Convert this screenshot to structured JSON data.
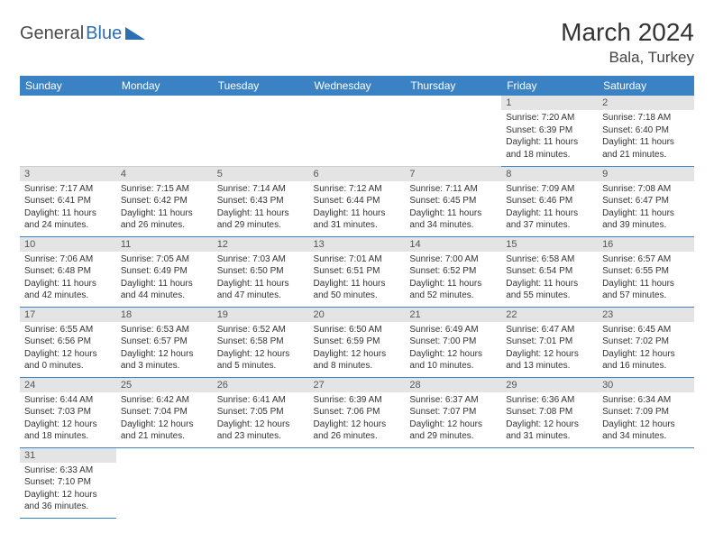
{
  "logo": {
    "text1": "General",
    "text2": "Blue"
  },
  "title": "March 2024",
  "location": "Bala, Turkey",
  "colors": {
    "header_bg": "#3b82c4",
    "header_text": "#ffffff",
    "daynum_bg": "#e4e4e4",
    "row_border": "#3b82c4",
    "body_text": "#333333"
  },
  "weekdays": [
    "Sunday",
    "Monday",
    "Tuesday",
    "Wednesday",
    "Thursday",
    "Friday",
    "Saturday"
  ],
  "weeks": [
    [
      null,
      null,
      null,
      null,
      null,
      {
        "n": "1",
        "sunrise": "Sunrise: 7:20 AM",
        "sunset": "Sunset: 6:39 PM",
        "daylight": "Daylight: 11 hours and 18 minutes."
      },
      {
        "n": "2",
        "sunrise": "Sunrise: 7:18 AM",
        "sunset": "Sunset: 6:40 PM",
        "daylight": "Daylight: 11 hours and 21 minutes."
      }
    ],
    [
      {
        "n": "3",
        "sunrise": "Sunrise: 7:17 AM",
        "sunset": "Sunset: 6:41 PM",
        "daylight": "Daylight: 11 hours and 24 minutes."
      },
      {
        "n": "4",
        "sunrise": "Sunrise: 7:15 AM",
        "sunset": "Sunset: 6:42 PM",
        "daylight": "Daylight: 11 hours and 26 minutes."
      },
      {
        "n": "5",
        "sunrise": "Sunrise: 7:14 AM",
        "sunset": "Sunset: 6:43 PM",
        "daylight": "Daylight: 11 hours and 29 minutes."
      },
      {
        "n": "6",
        "sunrise": "Sunrise: 7:12 AM",
        "sunset": "Sunset: 6:44 PM",
        "daylight": "Daylight: 11 hours and 31 minutes."
      },
      {
        "n": "7",
        "sunrise": "Sunrise: 7:11 AM",
        "sunset": "Sunset: 6:45 PM",
        "daylight": "Daylight: 11 hours and 34 minutes."
      },
      {
        "n": "8",
        "sunrise": "Sunrise: 7:09 AM",
        "sunset": "Sunset: 6:46 PM",
        "daylight": "Daylight: 11 hours and 37 minutes."
      },
      {
        "n": "9",
        "sunrise": "Sunrise: 7:08 AM",
        "sunset": "Sunset: 6:47 PM",
        "daylight": "Daylight: 11 hours and 39 minutes."
      }
    ],
    [
      {
        "n": "10",
        "sunrise": "Sunrise: 7:06 AM",
        "sunset": "Sunset: 6:48 PM",
        "daylight": "Daylight: 11 hours and 42 minutes."
      },
      {
        "n": "11",
        "sunrise": "Sunrise: 7:05 AM",
        "sunset": "Sunset: 6:49 PM",
        "daylight": "Daylight: 11 hours and 44 minutes."
      },
      {
        "n": "12",
        "sunrise": "Sunrise: 7:03 AM",
        "sunset": "Sunset: 6:50 PM",
        "daylight": "Daylight: 11 hours and 47 minutes."
      },
      {
        "n": "13",
        "sunrise": "Sunrise: 7:01 AM",
        "sunset": "Sunset: 6:51 PM",
        "daylight": "Daylight: 11 hours and 50 minutes."
      },
      {
        "n": "14",
        "sunrise": "Sunrise: 7:00 AM",
        "sunset": "Sunset: 6:52 PM",
        "daylight": "Daylight: 11 hours and 52 minutes."
      },
      {
        "n": "15",
        "sunrise": "Sunrise: 6:58 AM",
        "sunset": "Sunset: 6:54 PM",
        "daylight": "Daylight: 11 hours and 55 minutes."
      },
      {
        "n": "16",
        "sunrise": "Sunrise: 6:57 AM",
        "sunset": "Sunset: 6:55 PM",
        "daylight": "Daylight: 11 hours and 57 minutes."
      }
    ],
    [
      {
        "n": "17",
        "sunrise": "Sunrise: 6:55 AM",
        "sunset": "Sunset: 6:56 PM",
        "daylight": "Daylight: 12 hours and 0 minutes."
      },
      {
        "n": "18",
        "sunrise": "Sunrise: 6:53 AM",
        "sunset": "Sunset: 6:57 PM",
        "daylight": "Daylight: 12 hours and 3 minutes."
      },
      {
        "n": "19",
        "sunrise": "Sunrise: 6:52 AM",
        "sunset": "Sunset: 6:58 PM",
        "daylight": "Daylight: 12 hours and 5 minutes."
      },
      {
        "n": "20",
        "sunrise": "Sunrise: 6:50 AM",
        "sunset": "Sunset: 6:59 PM",
        "daylight": "Daylight: 12 hours and 8 minutes."
      },
      {
        "n": "21",
        "sunrise": "Sunrise: 6:49 AM",
        "sunset": "Sunset: 7:00 PM",
        "daylight": "Daylight: 12 hours and 10 minutes."
      },
      {
        "n": "22",
        "sunrise": "Sunrise: 6:47 AM",
        "sunset": "Sunset: 7:01 PM",
        "daylight": "Daylight: 12 hours and 13 minutes."
      },
      {
        "n": "23",
        "sunrise": "Sunrise: 6:45 AM",
        "sunset": "Sunset: 7:02 PM",
        "daylight": "Daylight: 12 hours and 16 minutes."
      }
    ],
    [
      {
        "n": "24",
        "sunrise": "Sunrise: 6:44 AM",
        "sunset": "Sunset: 7:03 PM",
        "daylight": "Daylight: 12 hours and 18 minutes."
      },
      {
        "n": "25",
        "sunrise": "Sunrise: 6:42 AM",
        "sunset": "Sunset: 7:04 PM",
        "daylight": "Daylight: 12 hours and 21 minutes."
      },
      {
        "n": "26",
        "sunrise": "Sunrise: 6:41 AM",
        "sunset": "Sunset: 7:05 PM",
        "daylight": "Daylight: 12 hours and 23 minutes."
      },
      {
        "n": "27",
        "sunrise": "Sunrise: 6:39 AM",
        "sunset": "Sunset: 7:06 PM",
        "daylight": "Daylight: 12 hours and 26 minutes."
      },
      {
        "n": "28",
        "sunrise": "Sunrise: 6:37 AM",
        "sunset": "Sunset: 7:07 PM",
        "daylight": "Daylight: 12 hours and 29 minutes."
      },
      {
        "n": "29",
        "sunrise": "Sunrise: 6:36 AM",
        "sunset": "Sunset: 7:08 PM",
        "daylight": "Daylight: 12 hours and 31 minutes."
      },
      {
        "n": "30",
        "sunrise": "Sunrise: 6:34 AM",
        "sunset": "Sunset: 7:09 PM",
        "daylight": "Daylight: 12 hours and 34 minutes."
      }
    ],
    [
      {
        "n": "31",
        "sunrise": "Sunrise: 6:33 AM",
        "sunset": "Sunset: 7:10 PM",
        "daylight": "Daylight: 12 hours and 36 minutes."
      },
      null,
      null,
      null,
      null,
      null,
      null
    ]
  ]
}
